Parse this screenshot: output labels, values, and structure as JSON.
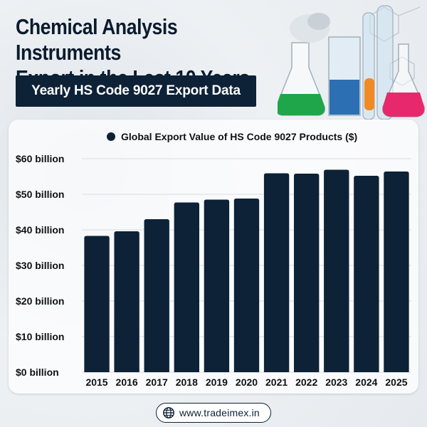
{
  "header": {
    "title_line1": "Chemical Analysis Instruments",
    "title_line2": "Export in the Last 10 Years",
    "subtitle": "Yearly HS Code 9027 Export Data"
  },
  "footer": {
    "url": "www.tradeimex.in",
    "icon": "globe-icon"
  },
  "colors": {
    "bar": "#0d2137",
    "accent": "#0d2137"
  },
  "chart_data": {
    "type": "bar",
    "categories": [
      "2015",
      "2016",
      "2017",
      "2018",
      "2019",
      "2020",
      "2021",
      "2022",
      "2023",
      "2024",
      "2025"
    ],
    "series": [
      {
        "name": "Global Export Value of HS Code 9027 Products ($)",
        "values": [
          38.3,
          39.6,
          43.0,
          47.7,
          48.5,
          48.8,
          55.9,
          55.8,
          56.9,
          55.2,
          56.4
        ]
      }
    ],
    "yticks": [
      "$0 billion",
      "$10 billion",
      "$20 billion",
      "$30 billion",
      "$40 billion",
      "$50 billion",
      "$60 billion"
    ],
    "ylim": [
      0,
      60
    ],
    "legend": "top",
    "grid": true
  }
}
